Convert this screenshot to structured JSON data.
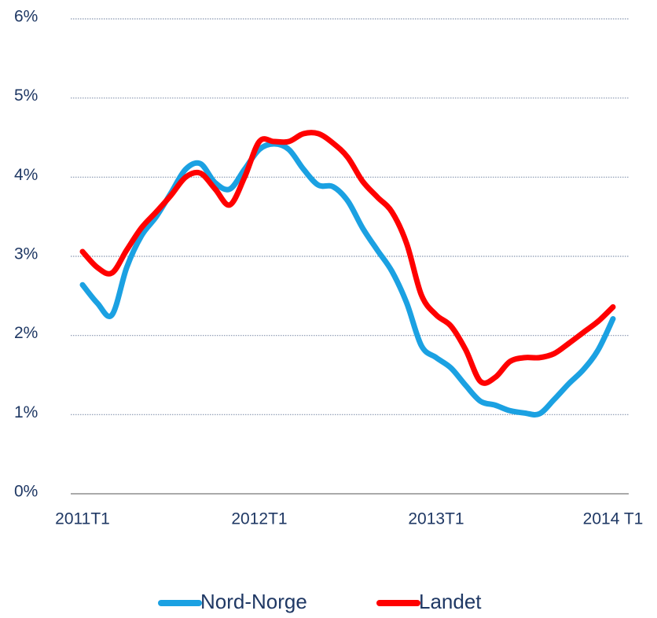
{
  "chart_data": {
    "type": "line",
    "categories": [
      "2011T1",
      null,
      null,
      null,
      null,
      null,
      null,
      null,
      null,
      null,
      null,
      null,
      "2012T1",
      null,
      null,
      null,
      null,
      null,
      null,
      null,
      null,
      null,
      null,
      null,
      "2013T1",
      null,
      null,
      null,
      null,
      null,
      null,
      null,
      null,
      null,
      null,
      null,
      "2014 T1"
    ],
    "series": [
      {
        "name": "Nord-Norge",
        "color": "#1ba1e2",
        "values": [
          2.64,
          2.41,
          2.26,
          2.86,
          3.26,
          3.5,
          3.8,
          4.1,
          4.17,
          3.93,
          3.85,
          4.1,
          4.35,
          4.42,
          4.35,
          4.1,
          3.9,
          3.88,
          3.7,
          3.36,
          3.08,
          2.81,
          2.41,
          1.87,
          1.72,
          1.59,
          1.37,
          1.17,
          1.12,
          1.05,
          1.02,
          1.01,
          1.19,
          1.39,
          1.57,
          1.82,
          2.21
        ]
      },
      {
        "name": "Landet",
        "color": "#ff0000",
        "values": [
          3.06,
          2.86,
          2.79,
          3.08,
          3.36,
          3.56,
          3.77,
          4.0,
          4.05,
          3.85,
          3.65,
          4.0,
          4.45,
          4.45,
          4.45,
          4.55,
          4.55,
          4.43,
          4.25,
          3.95,
          3.75,
          3.56,
          3.16,
          2.51,
          2.26,
          2.12,
          1.82,
          1.42,
          1.47,
          1.67,
          1.72,
          1.72,
          1.77,
          1.9,
          2.04,
          2.18,
          2.36
        ]
      }
    ],
    "ylim": [
      0,
      6
    ],
    "yticks": [
      {
        "value": 0,
        "label": "0%"
      },
      {
        "value": 1,
        "label": "1%"
      },
      {
        "value": 2,
        "label": "2%"
      },
      {
        "value": 3,
        "label": "3%"
      },
      {
        "value": 4,
        "label": "4%"
      },
      {
        "value": 5,
        "label": "5%"
      },
      {
        "value": 6,
        "label": "6%"
      }
    ],
    "grid": true,
    "legend": "bottom"
  }
}
